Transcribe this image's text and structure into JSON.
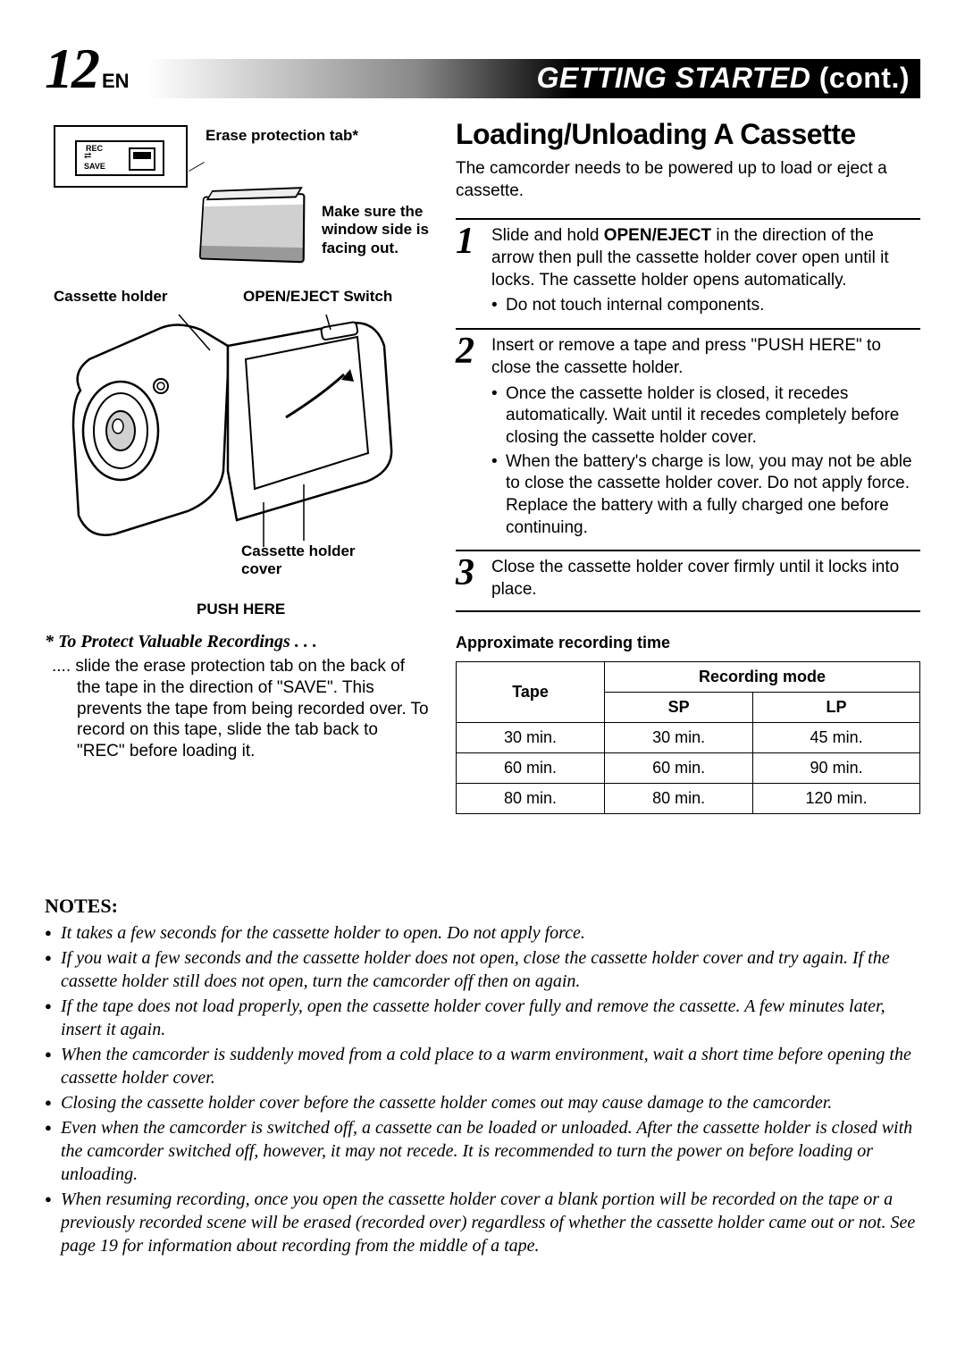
{
  "page": {
    "number": "12",
    "lang": "EN"
  },
  "header": {
    "title": "GETTING STARTED",
    "cont": "(cont.)"
  },
  "diagram": {
    "erase_label": "Erase protection tab*",
    "tab_rec": "REC",
    "tab_save": "SAVE",
    "window_label": "Make sure the window side is facing out.",
    "holder_label": "Cassette holder",
    "switch_label": "OPEN/EJECT Switch",
    "cover_label": "Cassette holder cover",
    "push_label": "PUSH HERE"
  },
  "protect": {
    "title": "* To Protect Valuable Recordings . . .",
    "body": ".... slide the erase protection tab on the back of the tape in the direction of \"SAVE\". This prevents the tape from being recorded over. To record on this tape, slide the tab back to \"REC\" before loading it."
  },
  "section": {
    "title": "Loading/Unloading A Cassette",
    "intro": "The camcorder needs to be powered up to load or eject a cassette."
  },
  "steps": [
    {
      "num": "1",
      "text": "Slide and hold OPEN/EJECT in the direction of the arrow then pull the cassette holder cover open until it locks. The cassette holder opens automatically.",
      "bullets": [
        "Do not touch internal components."
      ]
    },
    {
      "num": "2",
      "text": "Insert or remove a tape and press \"PUSH HERE\" to close the cassette holder.",
      "bullets": [
        "Once the cassette holder is closed, it recedes automatically. Wait until it recedes completely before closing the cassette holder cover.",
        "When the battery's charge is low, you may not be able to close the cassette holder cover. Do not apply force. Replace the battery with a fully charged one before continuing."
      ]
    },
    {
      "num": "3",
      "text": "Close the cassette holder cover firmly until it locks into place.",
      "bullets": []
    }
  ],
  "table": {
    "title": "Approximate recording time",
    "tape_header": "Tape",
    "mode_header": "Recording mode",
    "sp": "SP",
    "lp": "LP",
    "rows": [
      {
        "tape": "30 min.",
        "sp": "30 min.",
        "lp": "45 min."
      },
      {
        "tape": "60 min.",
        "sp": "60 min.",
        "lp": "90 min."
      },
      {
        "tape": "80 min.",
        "sp": "80 min.",
        "lp": "120 min."
      }
    ]
  },
  "notes": {
    "title": "NOTES:",
    "items": [
      "It takes a few seconds for the cassette holder to open. Do not apply force.",
      "If you wait a few seconds and the cassette holder does not open, close the cassette holder cover and try again. If the cassette holder still does not open, turn the camcorder off then on again.",
      "If the tape does not load properly, open the cassette holder cover fully and remove the cassette. A few minutes later, insert it again.",
      "When the camcorder is suddenly moved from a cold place to a warm environment, wait a short time before opening the cassette holder cover.",
      "Closing the cassette holder cover before the cassette holder comes out may cause damage to the camcorder.",
      "Even when the camcorder is switched off, a cassette can be loaded or unloaded. After the cassette holder is closed with the camcorder switched off, however, it may not recede. It is recommended to turn the power on before loading or unloading.",
      "When resuming recording, once you open the cassette holder cover a blank portion will be recorded on the tape or a previously recorded scene will be erased (recorded over) regardless of whether the cassette holder came out or not. See page 19 for information about recording from the middle of a tape."
    ]
  }
}
